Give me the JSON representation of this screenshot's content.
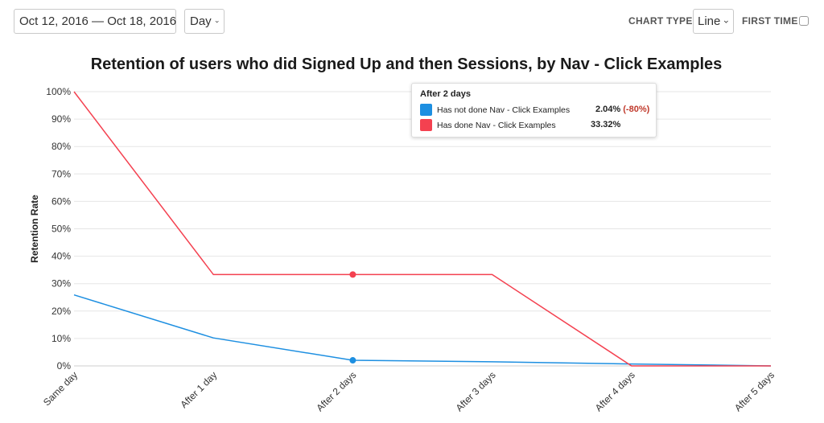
{
  "toolbar": {
    "date_range": "Oct 12, 2016 — Oct 18, 2016",
    "unit": "Day",
    "chart_type_label": "CHART TYPE",
    "chart_type": "Line",
    "first_time_label": "FIRST TIME"
  },
  "tooltip": {
    "title": "After 2 days",
    "rows": [
      {
        "name": "Has not done Nav - Click Examples",
        "value": "2.04%",
        "diff": "(-80%)",
        "color": "#1d8fe1"
      },
      {
        "name": "Has done Nav - Click Examples",
        "value": "33.32%",
        "diff": "",
        "color": "#f44150"
      }
    ]
  },
  "chart_data": {
    "type": "line",
    "title": "Retention of users who did Signed Up and then Sessions, by Nav - Click Examples",
    "xlabel": "",
    "ylabel": "Retention Rate",
    "ylim": [
      0,
      100
    ],
    "yticks": [
      "0%",
      "10%",
      "20%",
      "30%",
      "40%",
      "50%",
      "60%",
      "70%",
      "80%",
      "90%",
      "100%"
    ],
    "categories": [
      "Same day",
      "After 1 day",
      "After 2 days",
      "After 3 days",
      "After 4 days",
      "After 5 days"
    ],
    "grid": true,
    "highlight_index": 2,
    "series": [
      {
        "name": "Has not done Nav - Click Examples",
        "color": "#1d8fe1",
        "values": [
          25.9,
          10.2,
          2.04,
          1.5,
          0.7,
          0
        ]
      },
      {
        "name": "Has done Nav - Click Examples",
        "color": "#f44150",
        "values": [
          100,
          33.32,
          33.32,
          33.32,
          0,
          0
        ]
      }
    ]
  }
}
